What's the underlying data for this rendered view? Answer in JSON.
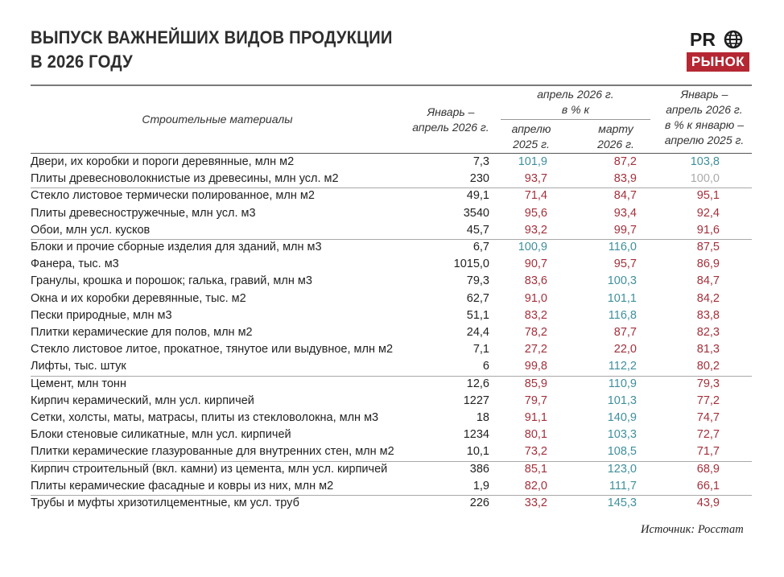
{
  "title": {
    "line1": "ВЫПУСК ВАЖНЕЙШИХ ВИДОВ ПРОДУКЦИИ",
    "line2": "В 2026 ГОДУ"
  },
  "logo": {
    "top": "PR",
    "bottom": "РЫНОК",
    "icon": "globe-icon",
    "accent_color": "#b52833"
  },
  "header": {
    "category": "Строительные материалы",
    "volume_l1": "Январь –",
    "volume_l2": "апрель 2026 г.",
    "group_l1": "апрель 2026 г.",
    "group_l2": "в % к",
    "april_l1": "апрелю",
    "april_l2": "2025 г.",
    "march_l1": "марту",
    "march_l2": "2026 г.",
    "ytd_l1": "Январь –",
    "ytd_l2": "апрель 2026 г.",
    "ytd_l3": "в % к январю –",
    "ytd_l4": "апрелю 2025 г."
  },
  "colors": {
    "decline": "#a3303b",
    "growth": "#3f8f9c",
    "flat": "#aaaaaa"
  },
  "chart_data": {
    "type": "table",
    "columns": [
      "Строительные материалы",
      "Январь – апрель 2026 г.",
      "апрель 2026 г. в % к апрелю 2025 г.",
      "апрель 2026 г. в % к марту 2026 г.",
      "Январь – апрель 2026 г. в % к январю – апрелю 2025 г."
    ],
    "rows": [
      {
        "name": "Двери, их коробки и пороги деревянные, млн м2",
        "value": "7,3",
        "apr": "101,9",
        "mar": "87,2",
        "ytd": "103,8"
      },
      {
        "name": "Плиты древесноволокнистые из древесины, млн усл. м2",
        "value": "230",
        "apr": "93,7",
        "mar": "83,9",
        "ytd": "100,0"
      },
      {
        "name": "Стекло листовое термически полированное, млн м2",
        "value": "49,1",
        "apr": "71,4",
        "mar": "84,7",
        "ytd": "95,1"
      },
      {
        "name": "Плиты древесностружечные, млн усл. м3",
        "value": "3540",
        "apr": "95,6",
        "mar": "93,4",
        "ytd": "92,4"
      },
      {
        "name": "Обои, млн усл. кусков",
        "value": "45,7",
        "apr": "93,2",
        "mar": "99,7",
        "ytd": "91,6"
      },
      {
        "name": "Блоки и прочие сборные изделия для зданий, млн м3",
        "value": "6,7",
        "apr": "100,9",
        "mar": "116,0",
        "ytd": "87,5"
      },
      {
        "name": "Фанера, тыс. м3",
        "value": "1015,0",
        "apr": "90,7",
        "mar": "95,7",
        "ytd": "86,9"
      },
      {
        "name": "Гранулы, крошка и порошок; галька, гравий, млн м3",
        "value": "79,3",
        "apr": "83,6",
        "mar": "100,3",
        "ytd": "84,7"
      },
      {
        "name": "Окна и их коробки деревянные, тыс. м2",
        "value": "62,7",
        "apr": "91,0",
        "mar": "101,1",
        "ytd": "84,2"
      },
      {
        "name": "Пески природные, млн м3",
        "value": "51,1",
        "apr": "83,2",
        "mar": "116,8",
        "ytd": "83,8"
      },
      {
        "name": "Плитки керамические для полов, млн м2",
        "value": "24,4",
        "apr": "78,2",
        "mar": "87,7",
        "ytd": "82,3"
      },
      {
        "name": "Стекло листовое литое, прокатное, тянутое или выдувное, млн м2",
        "value": "7,1",
        "apr": "27,2",
        "mar": "22,0",
        "ytd": "81,3"
      },
      {
        "name": "Лифты, тыс. штук",
        "value": "6",
        "apr": "99,8",
        "mar": "112,2",
        "ytd": "80,2"
      },
      {
        "name": "Цемент, млн тонн",
        "value": "12,6",
        "apr": "85,9",
        "mar": "110,9",
        "ytd": "79,3"
      },
      {
        "name": "Кирпич керамический, млн усл. кирпичей",
        "value": "1227",
        "apr": "79,7",
        "mar": "101,3",
        "ytd": "77,2"
      },
      {
        "name": "Сетки, холсты, маты, матрасы, плиты из стекловолокна, млн м3",
        "value": "18",
        "apr": "91,1",
        "mar": "140,9",
        "ytd": "74,7"
      },
      {
        "name": "Блоки стеновые силикатные, млн усл. кирпичей",
        "value": "1234",
        "apr": "80,1",
        "mar": "103,3",
        "ytd": "72,7"
      },
      {
        "name": "Плитки керамические глазурованные для внутренних стен, млн м2",
        "value": "10,1",
        "apr": "73,2",
        "mar": "108,5",
        "ytd": "71,7"
      },
      {
        "name": "Кирпич строительный (вкл. камни) из цемента, млн усл. кирпичей",
        "value": "386",
        "apr": "85,1",
        "mar": "123,0",
        "ytd": "68,9"
      },
      {
        "name": "Плиты керамические фасадные и ковры из них, млн м2",
        "value": "1,9",
        "apr": "82,0",
        "mar": "111,7",
        "ytd": "66,1"
      },
      {
        "name": "Трубы и муфты хризотилцементные, км усл. труб",
        "value": "226",
        "apr": "33,2",
        "mar": "145,3",
        "ytd": "43,9"
      }
    ]
  },
  "source": "Источник: Росстат"
}
